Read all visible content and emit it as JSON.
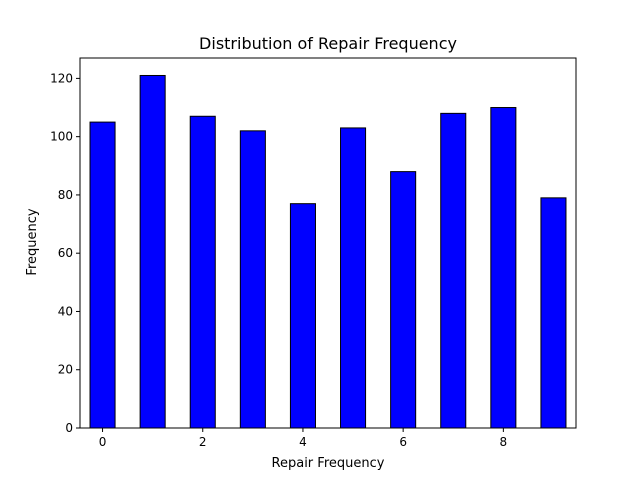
{
  "chart_data": {
    "type": "bar",
    "title": "Distribution of Repair Frequency",
    "xlabel": "Repair Frequency",
    "ylabel": "Frequency",
    "x": [
      0,
      1,
      2,
      3,
      4,
      5,
      6,
      7,
      8,
      9
    ],
    "values": [
      105,
      121,
      107,
      102,
      77,
      103,
      88,
      108,
      110,
      79
    ],
    "xlim": [
      -0.45,
      9.45
    ],
    "ylim": [
      0,
      127
    ],
    "xticks": [
      "0",
      "2",
      "4",
      "6",
      "8"
    ],
    "xtick_values": [
      0,
      2,
      4,
      6,
      8
    ],
    "yticks": [
      "0",
      "20",
      "40",
      "60",
      "80",
      "100",
      "120"
    ],
    "ytick_values": [
      0,
      20,
      40,
      60,
      80,
      100,
      120
    ],
    "grid": false,
    "bar_color": "#0000ff",
    "edge_color": "#000000"
  }
}
